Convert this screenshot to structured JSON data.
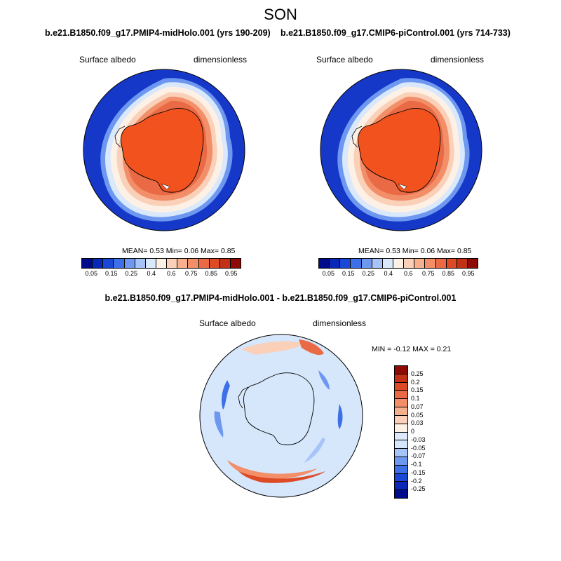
{
  "figure": {
    "title": "SON",
    "left_case": "b.e21.B1850.f09_g17.PMIP4-midHolo.001 (yrs 190-209)",
    "right_case": "b.e21.B1850.f09_g17.CMIP6-piControl.001 (yrs 714-733)",
    "diff_title": "b.e21.B1850.f09_g17.PMIP4-midHolo.001 - b.e21.B1850.f09_g17.CMIP6-piControl.001"
  },
  "panels": {
    "left": {
      "variable": "Surface albedo",
      "units": "dimensionless",
      "stats": "MEAN=  0.53  Min=  0.06  Max=  0.85"
    },
    "right": {
      "variable": "Surface albedo",
      "units": "dimensionless",
      "stats": "MEAN=  0.53  Min=  0.06  Max=  0.85"
    },
    "diff": {
      "variable": "Surface albedo",
      "units": "dimensionless",
      "stats": "MIN =  -0.12 MAX =  0.21"
    }
  },
  "colorbars": {
    "albedo": {
      "colors": [
        "#000b8c",
        "#0a28b8",
        "#1a47d6",
        "#3d6fe6",
        "#6e98f0",
        "#a6c4f7",
        "#d9e8fb",
        "#fdf1e6",
        "#fad0b8",
        "#f7b08e",
        "#f28e68",
        "#ea6a45",
        "#dc4a26",
        "#c23116",
        "#8e0b05"
      ],
      "ticks": [
        "0.05",
        "0.15",
        "0.25",
        "0.4",
        "0.6",
        "0.75",
        "0.85",
        "0.95"
      ]
    },
    "diff": {
      "colors": [
        "#000b8c",
        "#0a28b8",
        "#1a47d6",
        "#3d6fe6",
        "#6e98f0",
        "#a6c4f7",
        "#d6e6fb",
        "#ddeafb",
        "#fdf1e6",
        "#fad0b8",
        "#f7b08e",
        "#f28e68",
        "#ea6a45",
        "#dc4a26",
        "#c23116",
        "#8e0b05"
      ],
      "ticks": [
        "-0.25",
        "-0.2",
        "-0.15",
        "-0.1",
        "-0.07",
        "-0.05",
        "-0.03",
        "0",
        "0.03",
        "0.05",
        "0.07",
        "0.1",
        "0.15",
        "0.2",
        "0.25"
      ]
    }
  }
}
